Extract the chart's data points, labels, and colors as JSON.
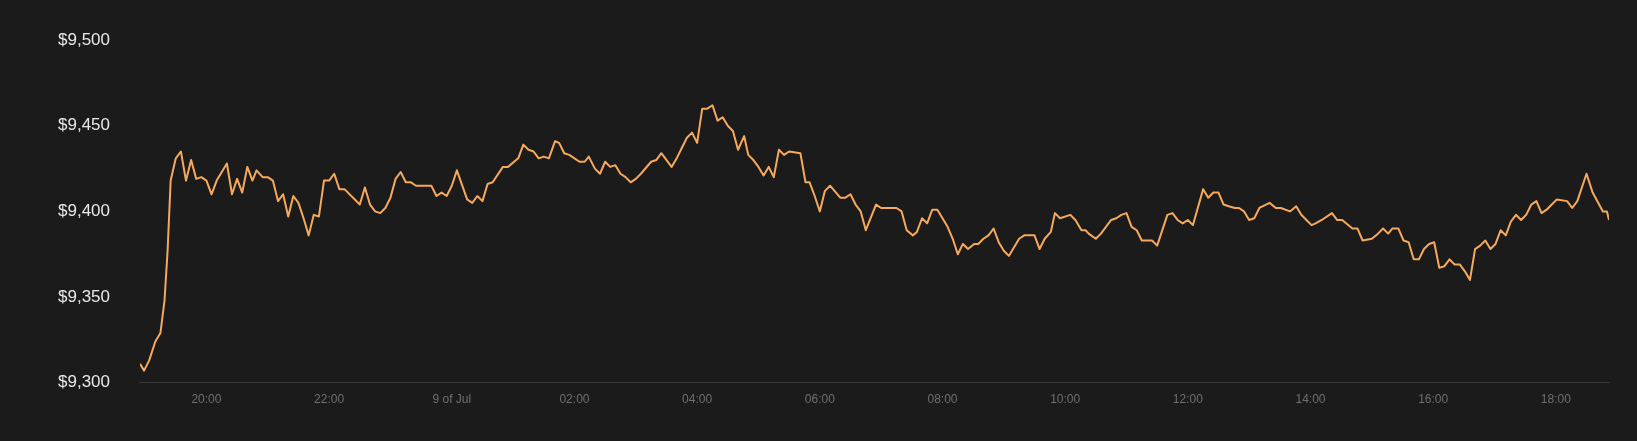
{
  "chart_data": {
    "type": "line",
    "xlim": [
      "--07-08T18:55",
      "--07-09T18:52"
    ],
    "ylim": [
      9300,
      9500
    ],
    "xticks": [
      {
        "value": "--07-08T20:00",
        "label": "20:00"
      },
      {
        "value": "--07-08T22:00",
        "label": "22:00"
      },
      {
        "value": "--07-09T00:00",
        "label": "9 of Jul"
      },
      {
        "value": "--07-09T02:00",
        "label": "02:00"
      },
      {
        "value": "--07-09T04:00",
        "label": "04:00"
      },
      {
        "value": "--07-09T06:00",
        "label": "06:00"
      },
      {
        "value": "--07-09T08:00",
        "label": "08:00"
      },
      {
        "value": "--07-09T10:00",
        "label": "10:00"
      },
      {
        "value": "--07-09T12:00",
        "label": "12:00"
      },
      {
        "value": "--07-09T14:00",
        "label": "14:00"
      },
      {
        "value": "--07-09T16:00",
        "label": "16:00"
      },
      {
        "value": "--07-09T18:00",
        "label": "18:00"
      }
    ],
    "yticks": [
      {
        "value": 9300,
        "label": "$9,300"
      },
      {
        "value": 9350,
        "label": "$9,350"
      },
      {
        "value": 9400,
        "label": "$9,400"
      },
      {
        "value": 9450,
        "label": "$9,450"
      },
      {
        "value": 9500,
        "label": "$9,500"
      }
    ],
    "grid": false,
    "legend": false,
    "series": [
      {
        "color": "#f6a95b",
        "x": [
          "--07-08T18:55",
          "--07-08T18:59",
          "--07-08T19:04",
          "--07-08T19:10",
          "--07-08T19:15",
          "--07-08T19:19",
          "--07-08T19:22",
          "--07-08T19:25",
          "--07-08T19:30",
          "--07-08T19:35",
          "--07-08T19:40",
          "--07-08T19:45",
          "--07-08T19:50",
          "--07-08T19:55",
          "--07-08T20:00",
          "--07-08T20:05",
          "--07-08T20:10",
          "--07-08T20:20",
          "--07-08T20:25",
          "--07-08T20:30",
          "--07-08T20:35",
          "--07-08T20:40",
          "--07-08T20:45",
          "--07-08T20:49",
          "--07-08T20:55",
          "--07-08T21:00",
          "--07-08T21:05",
          "--07-08T21:10",
          "--07-08T21:15",
          "--07-08T21:20",
          "--07-08T21:25",
          "--07-08T21:30",
          "--07-08T21:35",
          "--07-08T21:40",
          "--07-08T21:45",
          "--07-08T21:50",
          "--07-08T21:55",
          "--07-08T22:00",
          "--07-08T22:05",
          "--07-08T22:10",
          "--07-08T22:15",
          "--07-08T22:30",
          "--07-08T22:35",
          "--07-08T22:40",
          "--07-08T22:45",
          "--07-08T22:50",
          "--07-08T22:55",
          "--07-08T23:00",
          "--07-08T23:05",
          "--07-08T23:10",
          "--07-08T23:15",
          "--07-08T23:20",
          "--07-08T23:25",
          "--07-08T23:40",
          "--07-08T23:45",
          "--07-08T23:50",
          "--07-08T23:55",
          "--07-09T00:00",
          "--07-09T00:05",
          "--07-09T00:15",
          "--07-09T00:20",
          "--07-09T00:25",
          "--07-09T00:30",
          "--07-09T00:35",
          "--07-09T00:40",
          "--07-09T00:50",
          "--07-09T00:55",
          "--07-09T01:05",
          "--07-09T01:10",
          "--07-09T01:15",
          "--07-09T01:20",
          "--07-09T01:25",
          "--07-09T01:30",
          "--07-09T01:35",
          "--07-09T01:41",
          "--07-09T01:45",
          "--07-09T01:50",
          "--07-09T01:55",
          "--07-09T02:00",
          "--07-09T02:05",
          "--07-09T02:10",
          "--07-09T02:14",
          "--07-09T02:20",
          "--07-09T02:25",
          "--07-09T02:30",
          "--07-09T02:35",
          "--07-09T02:40",
          "--07-09T02:45",
          "--07-09T02:50",
          "--07-09T02:55",
          "--07-09T03:00",
          "--07-09T03:05",
          "--07-09T03:15",
          "--07-09T03:20",
          "--07-09T03:25",
          "--07-09T03:35",
          "--07-09T03:40",
          "--07-09T03:45",
          "--07-09T03:50",
          "--07-09T03:55",
          "--07-09T04:00",
          "--07-09T04:05",
          "--07-09T04:10",
          "--07-09T04:15",
          "--07-09T04:20",
          "--07-09T04:25",
          "--07-09T04:30",
          "--07-09T04:35",
          "--07-09T04:40",
          "--07-09T04:46",
          "--07-09T04:50",
          "--07-09T04:55",
          "--07-09T05:00",
          "--07-09T05:05",
          "--07-09T05:10",
          "--07-09T05:15",
          "--07-09T05:20",
          "--07-09T05:25",
          "--07-09T05:30",
          "--07-09T05:41",
          "--07-09T05:46",
          "--07-09T05:50",
          "--07-09T05:55",
          "--07-09T06:00",
          "--07-09T06:05",
          "--07-09T06:10",
          "--07-09T06:20",
          "--07-09T06:25",
          "--07-09T06:30",
          "--07-09T06:35",
          "--07-09T06:40",
          "--07-09T06:45",
          "--07-09T06:55",
          "--07-09T07:00",
          "--07-09T07:15",
          "--07-09T07:20",
          "--07-09T07:25",
          "--07-09T07:31",
          "--07-09T07:35",
          "--07-09T07:40",
          "--07-09T07:45",
          "--07-09T07:50",
          "--07-09T07:55",
          "--07-09T08:00",
          "--07-09T08:05",
          "--07-09T08:10",
          "--07-09T08:15",
          "--07-09T08:20",
          "--07-09T08:25",
          "--07-09T08:31",
          "--07-09T08:35",
          "--07-09T08:40",
          "--07-09T08:45",
          "--07-09T08:50",
          "--07-09T08:55",
          "--07-09T09:00",
          "--07-09T09:05",
          "--07-09T09:10",
          "--07-09T09:15",
          "--07-09T09:20",
          "--07-09T09:30",
          "--07-09T09:35",
          "--07-09T09:40",
          "--07-09T09:46",
          "--07-09T09:50",
          "--07-09T09:55",
          "--07-09T10:05",
          "--07-09T10:10",
          "--07-09T10:16",
          "--07-09T10:20",
          "--07-09T10:23",
          "--07-09T10:30",
          "--07-09T10:35",
          "--07-09T10:45",
          "--07-09T10:50",
          "--07-09T10:55",
          "--07-09T11:00",
          "--07-09T11:05",
          "--07-09T11:10",
          "--07-09T11:15",
          "--07-09T11:25",
          "--07-09T11:30",
          "--07-09T11:40",
          "--07-09T11:45",
          "--07-09T11:50",
          "--07-09T11:55",
          "--07-09T12:00",
          "--07-09T12:05",
          "--07-09T12:15",
          "--07-09T12:20",
          "--07-09T12:25",
          "--07-09T12:30",
          "--07-09T12:35",
          "--07-09T12:40",
          "--07-09T12:46",
          "--07-09T12:50",
          "--07-09T12:55",
          "--07-09T13:00",
          "--07-09T13:05",
          "--07-09T13:10",
          "--07-09T13:20",
          "--07-09T13:26",
          "--07-09T13:31",
          "--07-09T13:40",
          "--07-09T13:46",
          "--07-09T13:51",
          "--07-09T13:56",
          "--07-09T14:01",
          "--07-09T14:05",
          "--07-09T14:11",
          "--07-09T14:21",
          "--07-09T14:26",
          "--07-09T14:31",
          "--07-09T14:41",
          "--07-09T14:46",
          "--07-09T14:51",
          "--07-09T15:00",
          "--07-09T15:06",
          "--07-09T15:11",
          "--07-09T15:16",
          "--07-09T15:20",
          "--07-09T15:26",
          "--07-09T15:31",
          "--07-09T15:36",
          "--07-09T15:41",
          "--07-09T15:46",
          "--07-09T15:51",
          "--07-09T15:56",
          "--07-09T16:01",
          "--07-09T16:06",
          "--07-09T16:11",
          "--07-09T16:16",
          "--07-09T16:21",
          "--07-09T16:26",
          "--07-09T16:31",
          "--07-09T16:36",
          "--07-09T16:41",
          "--07-09T16:46",
          "--07-09T16:51",
          "--07-09T16:56",
          "--07-09T17:01",
          "--07-09T17:06",
          "--07-09T17:11",
          "--07-09T17:16",
          "--07-09T17:21",
          "--07-09T17:26",
          "--07-09T17:31",
          "--07-09T17:36",
          "--07-09T17:41",
          "--07-09T17:46",
          "--07-09T17:51",
          "--07-09T17:56",
          "--07-09T18:01",
          "--07-09T18:11",
          "--07-09T18:16",
          "--07-09T18:21",
          "--07-09T18:30",
          "--07-09T18:36",
          "--07-09T18:46",
          "--07-09T18:50",
          "--07-09T18:52"
        ],
        "values": [
          9311,
          9307,
          9313,
          9324,
          9329,
          9348,
          9377,
          9418,
          9431,
          9435,
          9418,
          9430,
          9419,
          9420,
          9418,
          9410,
          9418,
          9428,
          9410,
          9419,
          9411,
          9426,
          9418,
          9424,
          9420,
          9420,
          9418,
          9406,
          9410,
          9397,
          9409,
          9405,
          9396,
          9386,
          9398,
          9397,
          9418,
          9418,
          9422,
          9413,
          9413,
          9404,
          9414,
          9404,
          9400,
          9399,
          9402,
          9408,
          9419,
          9423,
          9417,
          9417,
          9415,
          9415,
          9409,
          9411,
          9409,
          9415,
          9424,
          9407,
          9405,
          9409,
          9406,
          9416,
          9417,
          9426,
          9426,
          9431,
          9439,
          9436,
          9435,
          9431,
          9432,
          9431,
          9441,
          9440,
          9434,
          9433,
          9431,
          9429,
          9429,
          9432,
          9425,
          9422,
          9429,
          9426,
          9427,
          9422,
          9420,
          9417,
          9419,
          9422,
          9429,
          9430,
          9434,
          9426,
          9431,
          9437,
          9443,
          9446,
          9440,
          9460,
          9460,
          9462,
          9453,
          9455,
          9450,
          9447,
          9436,
          9444,
          9433,
          9430,
          9426,
          9421,
          9426,
          9420,
          9436,
          9433,
          9435,
          9434,
          9417,
          9417,
          9409,
          9400,
          9412,
          9415,
          9408,
          9408,
          9410,
          9404,
          9400,
          9389,
          9404,
          9402,
          9402,
          9400,
          9389,
          9386,
          9388,
          9396,
          9393,
          9401,
          9401,
          9396,
          9391,
          9384,
          9375,
          9381,
          9378,
          9381,
          9381,
          9384,
          9386,
          9390,
          9382,
          9377,
          9374,
          9379,
          9384,
          9386,
          9386,
          9378,
          9384,
          9388,
          9399,
          9396,
          9398,
          9395,
          9389,
          9389,
          9387,
          9384,
          9387,
          9395,
          9396,
          9398,
          9399,
          9391,
          9389,
          9383,
          9383,
          9380,
          9398,
          9399,
          9395,
          9393,
          9395,
          9392,
          9413,
          9408,
          9411,
          9411,
          9404,
          9403,
          9402,
          9402,
          9400,
          9395,
          9396,
          9402,
          9405,
          9402,
          9402,
          9400,
          9403,
          9398,
          9395,
          9392,
          9393,
          9395,
          9399,
          9395,
          9395,
          9390,
          9390,
          9383,
          9384,
          9387,
          9390,
          9387,
          9390,
          9390,
          9383,
          9382,
          9372,
          9372,
          9378,
          9381,
          9382,
          9367,
          9368,
          9372,
          9369,
          9369,
          9365,
          9360,
          9378,
          9380,
          9383,
          9378,
          9381,
          9389,
          9386,
          9394,
          9398,
          9395,
          9398,
          9404,
          9406,
          9399,
          9401,
          9404,
          9407,
          9406,
          9402,
          9406,
          9422,
          9411,
          9400,
          9400,
          9395
        ]
      }
    ]
  }
}
